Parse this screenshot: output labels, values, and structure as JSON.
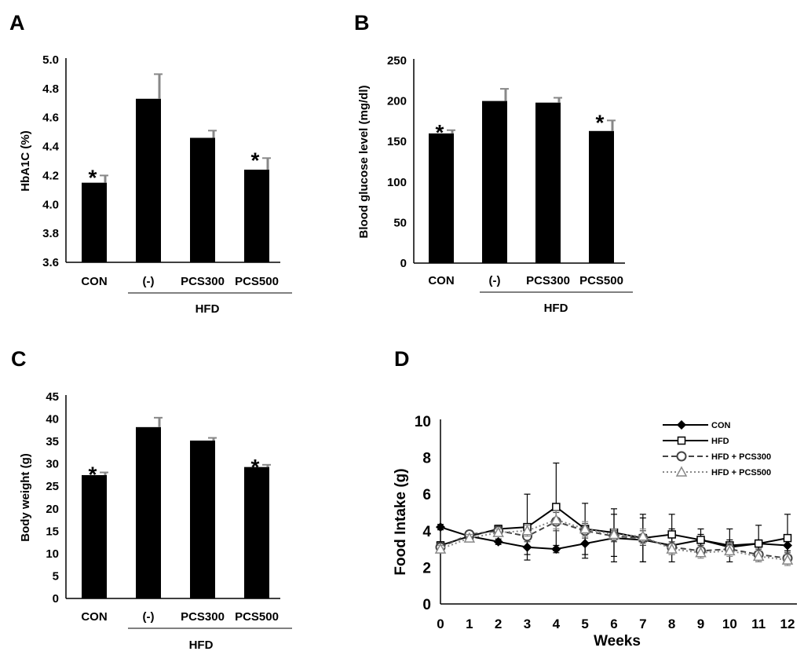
{
  "chart_data": [
    {
      "panel": "A",
      "type": "bar",
      "ylabel": "HbA1C (%)",
      "ylim": [
        3.6,
        5.0
      ],
      "yticks": [
        "3.6",
        "3.8",
        "4.0",
        "4.2",
        "4.4",
        "4.6",
        "4.8",
        "5.0"
      ],
      "categories": [
        "CON",
        "(-)",
        "PCS300",
        "PCS500"
      ],
      "values": [
        4.15,
        4.73,
        4.46,
        4.24
      ],
      "errors": [
        0.05,
        0.17,
        0.05,
        0.08
      ],
      "significant": [
        "*",
        "",
        "",
        "*"
      ],
      "group_label": "HFD"
    },
    {
      "panel": "B",
      "type": "bar",
      "ylabel": "Blood glucose level (mg/dl)",
      "ylim": [
        0,
        250
      ],
      "yticks": [
        "0",
        "50",
        "100",
        "150",
        "200",
        "250"
      ],
      "categories": [
        "CON",
        "(-)",
        "PCS300",
        "PCS500"
      ],
      "values": [
        160,
        200,
        198,
        163
      ],
      "errors": [
        4,
        15,
        6,
        13
      ],
      "significant": [
        "*",
        "",
        "",
        "*"
      ],
      "group_label": "HFD"
    },
    {
      "panel": "C",
      "type": "bar",
      "ylabel": "Body weight (g)",
      "ylim": [
        0,
        45
      ],
      "yticks": [
        "0",
        "5",
        "10",
        "15",
        "20",
        "25",
        "30",
        "35",
        "40",
        "45"
      ],
      "categories": [
        "CON",
        "(-)",
        "PCS300",
        "PCS500"
      ],
      "values": [
        27.5,
        38.2,
        35.2,
        29.3
      ],
      "errors": [
        0.6,
        2.1,
        0.6,
        0.5
      ],
      "significant": [
        "*",
        "",
        "",
        "*"
      ],
      "group_label": "HFD"
    },
    {
      "panel": "D",
      "type": "line",
      "xlabel": "Weeks",
      "ylabel": "Food Intake (g)",
      "ylim": [
        0,
        10
      ],
      "yticks": [
        "0",
        "2",
        "4",
        "6",
        "8",
        "10"
      ],
      "x": [
        0,
        1,
        2,
        3,
        4,
        5,
        6,
        7,
        8,
        9,
        10,
        11,
        12
      ],
      "xticks": [
        "0",
        "1",
        "2",
        "3",
        "4",
        "5",
        "6",
        "7",
        "8",
        "9",
        "10",
        "11",
        "12"
      ],
      "series": [
        {
          "name": "CON",
          "values": [
            4.2,
            3.7,
            3.4,
            3.1,
            3.0,
            3.3,
            3.6,
            3.5,
            3.2,
            3.5,
            3.1,
            3.3,
            3.2
          ],
          "errors": [
            0.15,
            0.15,
            0.15,
            0.4,
            0.2,
            0.8,
            1.3,
            1.2,
            0.9,
            0.3,
            0.4,
            0.2,
            0.3
          ],
          "style": "solid",
          "marker": "diamond",
          "color": "#000000"
        },
        {
          "name": "HFD",
          "values": [
            3.2,
            3.7,
            4.1,
            4.2,
            5.3,
            4.1,
            3.9,
            3.6,
            3.8,
            3.5,
            3.2,
            3.3,
            3.6
          ],
          "errors": [
            0.2,
            0.3,
            0.2,
            1.8,
            2.4,
            1.4,
            1.3,
            1.3,
            1.1,
            0.6,
            0.9,
            1.0,
            1.3
          ],
          "style": "solid",
          "marker": "square",
          "color": "#000000"
        },
        {
          "name": "HFD + PCS300",
          "values": [
            3.1,
            3.8,
            4.0,
            3.7,
            4.5,
            4.0,
            3.7,
            3.6,
            3.1,
            2.9,
            3.0,
            2.7,
            2.5
          ],
          "errors": [
            0.2,
            0.2,
            0.2,
            0.3,
            0.5,
            0.4,
            0.3,
            0.4,
            0.3,
            0.3,
            0.3,
            0.3,
            0.3
          ],
          "style": "dashed",
          "marker": "circle",
          "color": "#444444"
        },
        {
          "name": "HFD + PCS500",
          "values": [
            3.0,
            3.6,
            3.9,
            4.0,
            4.6,
            4.1,
            3.8,
            3.7,
            3.0,
            2.8,
            2.9,
            2.6,
            2.4
          ],
          "errors": [
            0.2,
            0.2,
            0.2,
            0.3,
            0.5,
            0.4,
            0.3,
            0.4,
            0.3,
            0.3,
            0.3,
            0.3,
            0.3
          ],
          "style": "dotted",
          "marker": "triangle",
          "color": "#888888"
        }
      ]
    }
  ]
}
